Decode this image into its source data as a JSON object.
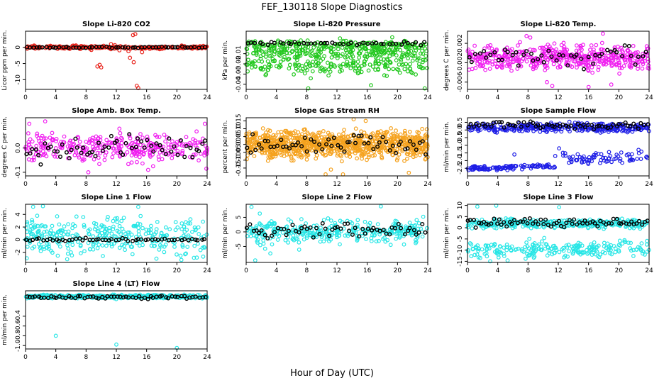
{
  "figure": {
    "title": "FEF_130118  Slope Diagnostics",
    "xlabel": "Hour of Day (UTC)"
  },
  "colors": {
    "red": "#e8221a",
    "green": "#22c81e",
    "magenta": "#f01ef0",
    "orange": "#f5a21e",
    "blue": "#1e1ee6",
    "cyan": "#28e6e6",
    "ref": "#000000"
  },
  "chart_data": [
    {
      "type": "scatter",
      "title": "Slope Li-820 CO2",
      "ylabel": "Licor ppm per min.",
      "xlim": [
        0,
        24
      ],
      "xticks": [
        0,
        4,
        8,
        12,
        16,
        20,
        24
      ],
      "ylim": [
        -13,
        5
      ],
      "yticks": [
        0,
        -5,
        -10
      ],
      "yticklabels": [
        "0",
        "-5",
        "-10"
      ],
      "color": "red",
      "bands": [
        {
          "y": 0,
          "spread": 0.45,
          "n": 240,
          "x0": 0,
          "x1": 24
        }
      ],
      "outliers": [
        [
          9.8,
          -5.4
        ],
        [
          10.0,
          -6.2
        ],
        [
          9.5,
          -5.9
        ],
        [
          11.3,
          1.0
        ],
        [
          11.8,
          0.7
        ],
        [
          14.2,
          3.8
        ],
        [
          14.5,
          4.1
        ],
        [
          13.8,
          -3.2
        ],
        [
          14.3,
          -4.6
        ],
        [
          14.9,
          -12.6
        ],
        [
          14.7,
          -11.9
        ],
        [
          13.6,
          -1.2
        ],
        [
          15.4,
          -1.5
        ],
        [
          12.4,
          -0.9
        ],
        [
          8.7,
          -0.8
        ]
      ],
      "ref": {
        "y": 0,
        "spread": 0.2,
        "n": 55
      }
    },
    {
      "type": "scatter",
      "title": "Slope Li-820 Pressure",
      "ylabel": "kPa per min.",
      "xlim": [
        0,
        24
      ],
      "xticks": [
        0,
        4,
        8,
        12,
        16,
        20,
        24
      ],
      "ylim": [
        -0.045,
        0.012
      ],
      "yticks": [
        -0.01,
        -0.02,
        -0.03,
        -0.04
      ],
      "yticklabels": [
        "-0.01",
        "-0.02",
        "-0.03",
        "-0.04"
      ],
      "color": "green",
      "bands": [
        {
          "y": -0.002,
          "spread": 0.004,
          "n": 190,
          "x0": 0,
          "x1": 24
        },
        {
          "y": -0.009,
          "spread": 0.006,
          "n": 170,
          "x0": 0,
          "x1": 24
        },
        {
          "y": -0.021,
          "spread": 0.009,
          "n": 200,
          "x0": 0,
          "x1": 24
        }
      ],
      "outliers": [
        [
          8.2,
          -0.044
        ],
        [
          16.5,
          -0.041
        ],
        [
          23.6,
          -0.044
        ],
        [
          12.4,
          0.005
        ],
        [
          19.3,
          0.006
        ]
      ],
      "ref": {
        "y": 0.0,
        "spread": 0.0015,
        "n": 45
      }
    },
    {
      "type": "scatter",
      "title": "Slope Li-820 Temp.",
      "ylabel": "degrees C per min.",
      "xlim": [
        0,
        24
      ],
      "xticks": [
        0,
        4,
        8,
        12,
        16,
        20,
        24
      ],
      "ylim": [
        -0.0075,
        0.0045
      ],
      "yticks": [
        0.002,
        -0.002,
        -0.006
      ],
      "yticklabels": [
        "0.002",
        "-0.002",
        "-0.006"
      ],
      "color": "magenta",
      "bands": [
        {
          "y": -0.001,
          "spread": 0.0024,
          "n": 480,
          "x0": 0,
          "x1": 24
        }
      ],
      "outliers": [
        [
          7.8,
          0.0035
        ],
        [
          8.3,
          0.0032
        ],
        [
          17.9,
          0.004
        ],
        [
          11.2,
          -0.0068
        ],
        [
          16.0,
          -0.007
        ],
        [
          19.0,
          -0.0065
        ],
        [
          10.5,
          -0.006
        ]
      ],
      "ref": {
        "y": -0.001,
        "spread": 0.0022,
        "n": 50
      }
    },
    {
      "type": "scatter",
      "title": "Slope Amb. Box Temp.",
      "ylabel": "degrees C per min.",
      "xlim": [
        0,
        24
      ],
      "xticks": [
        0,
        4,
        8,
        12,
        16,
        20,
        24
      ],
      "ylim": [
        -0.115,
        0.125
      ],
      "yticks": [
        0.0,
        -0.1
      ],
      "yticklabels": [
        "0.0",
        "-0.1"
      ],
      "color": "magenta",
      "bands": [
        {
          "y": 0.0,
          "spread": 0.05,
          "n": 320,
          "x0": 0,
          "x1": 24
        }
      ],
      "outliers": [
        [
          0.5,
          0.1
        ],
        [
          2.6,
          0.11
        ],
        [
          8.3,
          -0.1
        ],
        [
          23.7,
          0.1
        ],
        [
          23.9,
          -0.085
        ],
        [
          12.4,
          0.08
        ],
        [
          16.2,
          -0.09
        ]
      ],
      "ref": {
        "y": 0.0,
        "spread": 0.045,
        "n": 60
      }
    },
    {
      "type": "scatter",
      "title": "Slope Gas Stream RH",
      "ylabel": "percent per min.",
      "xlim": [
        0,
        24
      ],
      "xticks": [
        0,
        4,
        8,
        12,
        16,
        20,
        24
      ],
      "ylim": [
        -0.2,
        0.17
      ],
      "yticks": [
        0.15,
        0.1,
        0.05,
        0.0,
        -0.05,
        -0.1,
        -0.15
      ],
      "yticklabels": [
        "0.15",
        "0.10",
        "0.05",
        "0.00",
        "-0.05",
        "-0.10",
        "-0.15"
      ],
      "color": "orange",
      "bands": [
        {
          "y": 0.0,
          "spread": 0.075,
          "n": 900,
          "x0": 0,
          "x1": 24
        }
      ],
      "outliers": [
        [
          10.5,
          -0.19
        ],
        [
          11.2,
          -0.16
        ],
        [
          12.8,
          -0.19
        ],
        [
          14.2,
          0.16
        ],
        [
          15.8,
          0.15
        ],
        [
          21.5,
          -0.18
        ]
      ],
      "ref": {
        "y": 0.0,
        "spread": 0.05,
        "n": 60
      }
    },
    {
      "type": "scatter",
      "title": "Slope Sample Flow",
      "ylabel": "ml/min per min.",
      "xlim": [
        0,
        24
      ],
      "xticks": [
        0,
        4,
        8,
        12,
        16,
        20,
        24
      ],
      "ylim": [
        -3.0,
        0.8
      ],
      "yticks": [
        0.5,
        0.0,
        -0.5,
        -1.0,
        -1.5,
        -2.0,
        -2.5
      ],
      "yticklabels": [
        "0.5",
        "0.0",
        "-0.5",
        "-1.0",
        "-1.5",
        "-2.0",
        "-2.5"
      ],
      "color": "blue",
      "bands": [
        {
          "y": 0.15,
          "spread": 0.25,
          "n": 340,
          "x0": 0,
          "x1": 24
        },
        {
          "y": -2.5,
          "spread": 0.12,
          "n": 60,
          "x0": 0,
          "x1": 6
        },
        {
          "y": -2.4,
          "spread": 0.15,
          "n": 50,
          "x0": 5,
          "x1": 12
        },
        {
          "y": -1.9,
          "spread": 0.35,
          "n": 30,
          "x0": 12,
          "x1": 16.5
        },
        {
          "y": -1.8,
          "spread": 0.3,
          "n": 45,
          "x0": 16.5,
          "x1": 24
        }
      ],
      "outliers": [
        [
          6.2,
          -1.6
        ],
        [
          11.6,
          -1.7
        ],
        [
          12.1,
          -1.2
        ],
        [
          22.6,
          -1.3
        ]
      ],
      "ref": {
        "y": 0.3,
        "spread": 0.2,
        "n": 65
      }
    },
    {
      "type": "scatter",
      "title": "Slope Line 1 Flow",
      "ylabel": "ml/min per min.",
      "xlim": [
        0,
        24
      ],
      "xticks": [
        0,
        4,
        8,
        12,
        16,
        20,
        24
      ],
      "ylim": [
        -3.6,
        5.6
      ],
      "yticks": [
        4,
        2,
        0,
        -2
      ],
      "yticklabels": [
        "4",
        "2",
        "0",
        "-2"
      ],
      "color": "cyan",
      "bands": [
        {
          "y": 0.6,
          "spread": 2.6,
          "n": 330,
          "x0": 0,
          "x1": 24
        }
      ],
      "outliers": [
        [
          1.0,
          5.2
        ],
        [
          2.3,
          5.3
        ],
        [
          14.9,
          5.2
        ],
        [
          5.5,
          -3.1
        ],
        [
          17.3,
          -3.0
        ],
        [
          20.6,
          -3.2
        ]
      ],
      "ref": {
        "y": 0.0,
        "spread": 0.2,
        "n": 55
      }
    },
    {
      "type": "scatter",
      "title": "Slope Line 2 Flow",
      "ylabel": "ml/min per min.",
      "xlim": [
        0,
        24
      ],
      "xticks": [
        0,
        4,
        8,
        12,
        16,
        20,
        24
      ],
      "ylim": [
        -10.5,
        9.5
      ],
      "yticks": [
        5,
        0,
        -5
      ],
      "yticklabels": [
        "5",
        "0",
        "-5"
      ],
      "color": "cyan",
      "bands": [
        {
          "y": 0.0,
          "spread": 3.2,
          "n": 340,
          "x0": 0,
          "x1": 24
        }
      ],
      "outliers": [
        [
          0.7,
          8.6
        ],
        [
          1.2,
          -9.8
        ],
        [
          1.8,
          6.3
        ],
        [
          3.2,
          -7.4
        ],
        [
          7.0,
          -6.1
        ],
        [
          17.8,
          8.8
        ],
        [
          2.5,
          -5.8
        ],
        [
          23.4,
          5.2
        ]
      ],
      "ref": {
        "y": 0.3,
        "spread": 2.5,
        "n": 60
      }
    },
    {
      "type": "scatter",
      "title": "Slope Line 3 Flow",
      "ylabel": "ml/min per min.",
      "xlim": [
        0,
        24
      ],
      "xticks": [
        0,
        4,
        8,
        12,
        16,
        20,
        24
      ],
      "ylim": [
        -15.5,
        10.5
      ],
      "yticks": [
        10,
        5,
        0,
        -5,
        -10,
        -15
      ],
      "yticklabels": [
        "10",
        "5",
        "0",
        "-5",
        "-10",
        "-15"
      ],
      "color": "cyan",
      "bands": [
        {
          "y": 1.8,
          "spread": 1.6,
          "n": 340,
          "x0": 0,
          "x1": 24
        },
        {
          "y": -9.5,
          "spread": 3.2,
          "n": 230,
          "x0": 0,
          "x1": 24
        }
      ],
      "outliers": [
        [
          1.3,
          9.5
        ],
        [
          3.8,
          9.9
        ],
        [
          12.1,
          9.2
        ],
        [
          3.0,
          -15.0
        ],
        [
          5.3,
          -14.6
        ]
      ],
      "ref": {
        "y": 2.2,
        "spread": 1.6,
        "n": 70
      }
    },
    {
      "type": "scatter",
      "title": "Slope Line 4 (LT) Flow",
      "ylabel": "ml/min per min.",
      "xlim": [
        0,
        24
      ],
      "xticks": [
        0,
        4,
        8,
        12,
        16,
        20,
        24
      ],
      "ylim": [
        -1.07,
        0.12
      ],
      "yticks": [
        -0.4,
        -0.6,
        -0.8,
        -1.0
      ],
      "yticklabels": [
        "-0.4",
        "-0.6",
        "-0.8",
        "-1.0"
      ],
      "color": "cyan",
      "bands": [
        {
          "y": 0.0,
          "spread": 0.035,
          "n": 420,
          "x0": 0,
          "x1": 24
        }
      ],
      "outliers": [
        [
          4.0,
          -0.8
        ],
        [
          12.0,
          -0.98
        ],
        [
          20.0,
          -1.05
        ]
      ],
      "ref": {
        "y": -0.01,
        "spread": 0.03,
        "n": 60
      }
    }
  ]
}
